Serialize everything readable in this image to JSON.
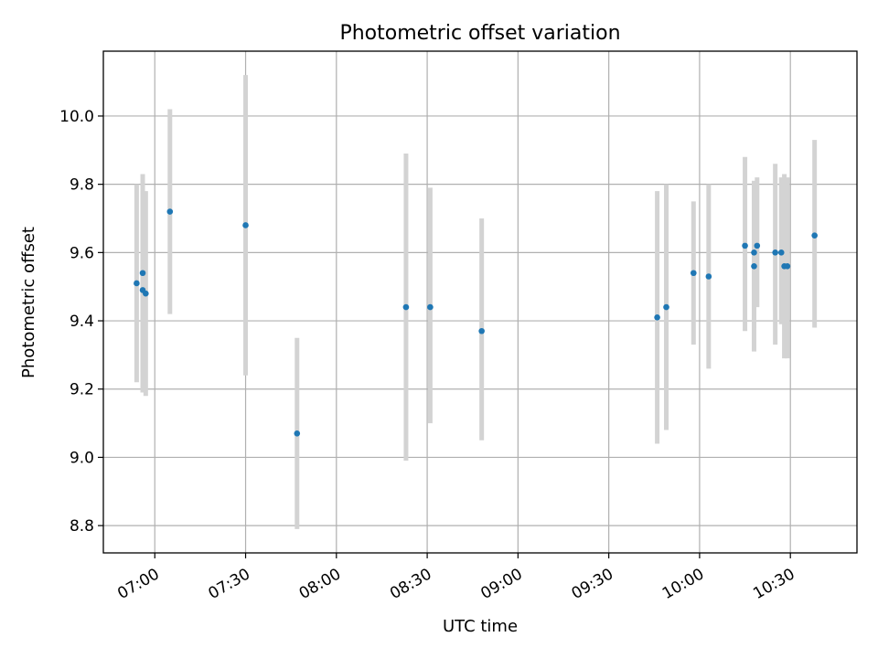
{
  "chart_data": {
    "type": "scatter",
    "title": "Photometric offset variation",
    "xlabel": "UTC time",
    "ylabel": "Photometric offset",
    "xlim": [
      "06:43",
      "10:52"
    ],
    "ylim": [
      8.72,
      10.19
    ],
    "x_ticks": [
      "07:00",
      "07:30",
      "08:00",
      "08:30",
      "09:00",
      "09:30",
      "10:00",
      "10:30"
    ],
    "y_ticks": [
      8.8,
      9.0,
      9.2,
      9.4,
      9.6,
      9.8,
      10.0
    ],
    "y_tick_labels": [
      "8.8",
      "9.0",
      "9.2",
      "9.4",
      "9.6",
      "9.8",
      "10.0"
    ],
    "grid": true,
    "errorbar_color": "#d3d3d3",
    "marker_color": "#1f77b4",
    "points": [
      {
        "time": "06:54",
        "value": 9.51,
        "low": 9.22,
        "high": 9.8
      },
      {
        "time": "06:56",
        "value": 9.54,
        "low": 9.25,
        "high": 9.83
      },
      {
        "time": "06:56",
        "value": 9.49,
        "low": 9.19,
        "high": 9.78
      },
      {
        "time": "06:57",
        "value": 9.48,
        "low": 9.18,
        "high": 9.78
      },
      {
        "time": "07:05",
        "value": 9.72,
        "low": 9.42,
        "high": 10.02
      },
      {
        "time": "07:30",
        "value": 9.68,
        "low": 9.24,
        "high": 10.12
      },
      {
        "time": "07:47",
        "value": 9.07,
        "low": 8.79,
        "high": 9.35
      },
      {
        "time": "08:23",
        "value": 9.44,
        "low": 8.99,
        "high": 9.89
      },
      {
        "time": "08:31",
        "value": 9.44,
        "low": 9.1,
        "high": 9.79
      },
      {
        "time": "08:48",
        "value": 9.37,
        "low": 9.05,
        "high": 9.7
      },
      {
        "time": "09:46",
        "value": 9.41,
        "low": 9.04,
        "high": 9.78
      },
      {
        "time": "09:49",
        "value": 9.44,
        "low": 9.08,
        "high": 9.8
      },
      {
        "time": "09:58",
        "value": 9.54,
        "low": 9.33,
        "high": 9.75
      },
      {
        "time": "10:03",
        "value": 9.53,
        "low": 9.26,
        "high": 9.8
      },
      {
        "time": "10:15",
        "value": 9.62,
        "low": 9.37,
        "high": 9.88
      },
      {
        "time": "10:18",
        "value": 9.6,
        "low": 9.38,
        "high": 9.81
      },
      {
        "time": "10:18",
        "value": 9.56,
        "low": 9.31,
        "high": 9.81
      },
      {
        "time": "10:19",
        "value": 9.62,
        "low": 9.44,
        "high": 9.82
      },
      {
        "time": "10:25",
        "value": 9.6,
        "low": 9.33,
        "high": 9.86
      },
      {
        "time": "10:27",
        "value": 9.6,
        "low": 9.39,
        "high": 9.82
      },
      {
        "time": "10:28",
        "value": 9.56,
        "low": 9.29,
        "high": 9.83
      },
      {
        "time": "10:29",
        "value": 9.56,
        "low": 9.29,
        "high": 9.82
      },
      {
        "time": "10:38",
        "value": 9.65,
        "low": 9.38,
        "high": 9.93
      }
    ]
  }
}
